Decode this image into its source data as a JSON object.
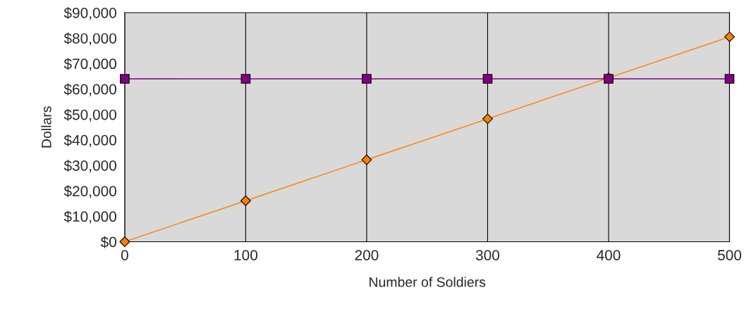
{
  "chart_data": {
    "type": "line",
    "xlabel": "Number of Soldiers",
    "ylabel": "Dollars",
    "x": [
      0,
      100,
      200,
      300,
      400,
      500
    ],
    "series": [
      {
        "color": "#ff7f00",
        "marker": "diamond",
        "values": [
          0,
          16100,
          32200,
          48300,
          64400,
          80500
        ]
      },
      {
        "color": "#800080",
        "marker": "square",
        "values": [
          64000,
          64000,
          64000,
          64000,
          64000,
          64000
        ]
      }
    ],
    "xlim": [
      0,
      500
    ],
    "xticks": [
      0,
      100,
      200,
      300,
      400,
      500
    ],
    "ylim": [
      0,
      90000
    ],
    "yticks": [
      {
        "value": 0,
        "label": "$0"
      },
      {
        "value": 10000,
        "label": "$10,000"
      },
      {
        "value": 20000,
        "label": "$20,000"
      },
      {
        "value": 30000,
        "label": "$30,000"
      },
      {
        "value": 40000,
        "label": "$40,000"
      },
      {
        "value": 50000,
        "label": "$50,000"
      },
      {
        "value": 60000,
        "label": "$60,000"
      },
      {
        "value": 70000,
        "label": "$70,000"
      },
      {
        "value": 80000,
        "label": "$80,000"
      },
      {
        "value": 90000,
        "label": "$90,000"
      }
    ],
    "grid": "x"
  }
}
